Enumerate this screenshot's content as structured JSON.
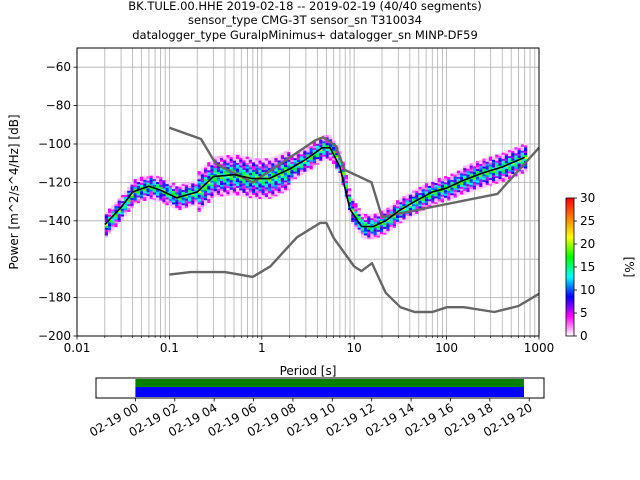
{
  "title_lines": [
    "BK.TULE.00.HHE   2019-02-18 -- 2019-02-19  (40/40 segments)",
    "sensor_type CMG-3T sensor_sn T310034",
    "datalogger_type GuralpMinimus+ datalogger_sn MINP-DF59"
  ],
  "chart_data": {
    "type": "heatmap",
    "xlabel": "Period [s]",
    "ylabel": "Power [m^2/s^4/Hz] [dB]",
    "x_scale": "log",
    "xlim": [
      0.01,
      1000
    ],
    "ylim": [
      -200,
      -50
    ],
    "x_ticks": [
      0.01,
      0.1,
      1,
      10,
      100,
      1000
    ],
    "x_tick_labels": [
      "0.01",
      "0.1",
      "1",
      "10",
      "100",
      "1000"
    ],
    "y_ticks": [
      -200,
      -180,
      -160,
      -140,
      -120,
      -100,
      -80,
      -60
    ],
    "y_tick_labels": [
      "−200",
      "−180",
      "−160",
      "−140",
      "−120",
      "−100",
      "−80",
      "−60"
    ],
    "grid": true,
    "colorbar": {
      "label": "[%]",
      "range": [
        0,
        30
      ],
      "ticks": [
        0,
        5,
        10,
        15,
        20,
        25,
        30
      ],
      "tick_labels": [
        "0",
        "5",
        "10",
        "15",
        "20",
        "25",
        "30"
      ],
      "colors": [
        "#ffffff",
        "#ff00ff",
        "#0000ff",
        "#00ffff",
        "#00ff00",
        "#ffff00",
        "#ff8000",
        "#ff0000"
      ]
    },
    "series": [
      {
        "name": "",
        "role": "NHNM",
        "color": "#666666",
        "x": [
          0.1,
          0.22,
          0.32,
          0.8,
          3.8,
          4.6,
          6.3,
          7.9,
          15.4,
          20,
          354.8,
          10000
        ],
        "y": [
          -91.5,
          -97.4,
          -110.5,
          -120,
          -98,
          -96.5,
          -101,
          -113.5,
          -120,
          -138,
          -126,
          -48.5
        ]
      },
      {
        "name": "",
        "role": "NLNM",
        "color": "#666666",
        "x": [
          0.1,
          0.17,
          0.4,
          0.8,
          1.24,
          2.4,
          4.3,
          5,
          6,
          10,
          12,
          15.6,
          21.9,
          31.6,
          45,
          70,
          101,
          154,
          328,
          600,
          1000
        ],
        "y": [
          -168,
          -166.7,
          -166.7,
          -169.2,
          -163.7,
          -148.6,
          -141.1,
          -141.1,
          -149,
          -163.8,
          -166.2,
          -162.1,
          -177.5,
          -185,
          -187.5,
          -187.5,
          -185,
          -185,
          -187.5,
          -184.4,
          -178
        ]
      },
      {
        "name": "",
        "role": "median",
        "color": "#000000",
        "x": [
          0.02,
          0.03,
          0.04,
          0.06,
          0.08,
          0.12,
          0.2,
          0.3,
          0.5,
          0.8,
          1.2,
          2,
          3,
          4.5,
          5.5,
          7,
          9,
          12,
          16,
          22,
          30,
          45,
          70,
          100,
          150,
          250,
          400,
          700
        ],
        "y": [
          -142,
          -133,
          -125,
          -122,
          -124,
          -128,
          -125,
          -117,
          -116,
          -118,
          -118,
          -113,
          -108,
          -102,
          -102,
          -112,
          -134,
          -143,
          -143,
          -140,
          -135,
          -130,
          -125,
          -123,
          -119,
          -115,
          -112,
          -107
        ]
      }
    ]
  },
  "timeline": {
    "tick_labels": [
      "02-19 00",
      "02-19 02",
      "02-19 04",
      "02-19 06",
      "02-19 08",
      "02-19 10",
      "02-19 12",
      "02-19 14",
      "02-19 16",
      "02-19 18",
      "02-19 20"
    ],
    "data_start_hours": 0,
    "data_end_hours": 20.75,
    "axis_range_hours": [
      -2.0,
      20.75
    ],
    "colors": {
      "upper": "#008000",
      "lower": "#0000ff"
    }
  }
}
